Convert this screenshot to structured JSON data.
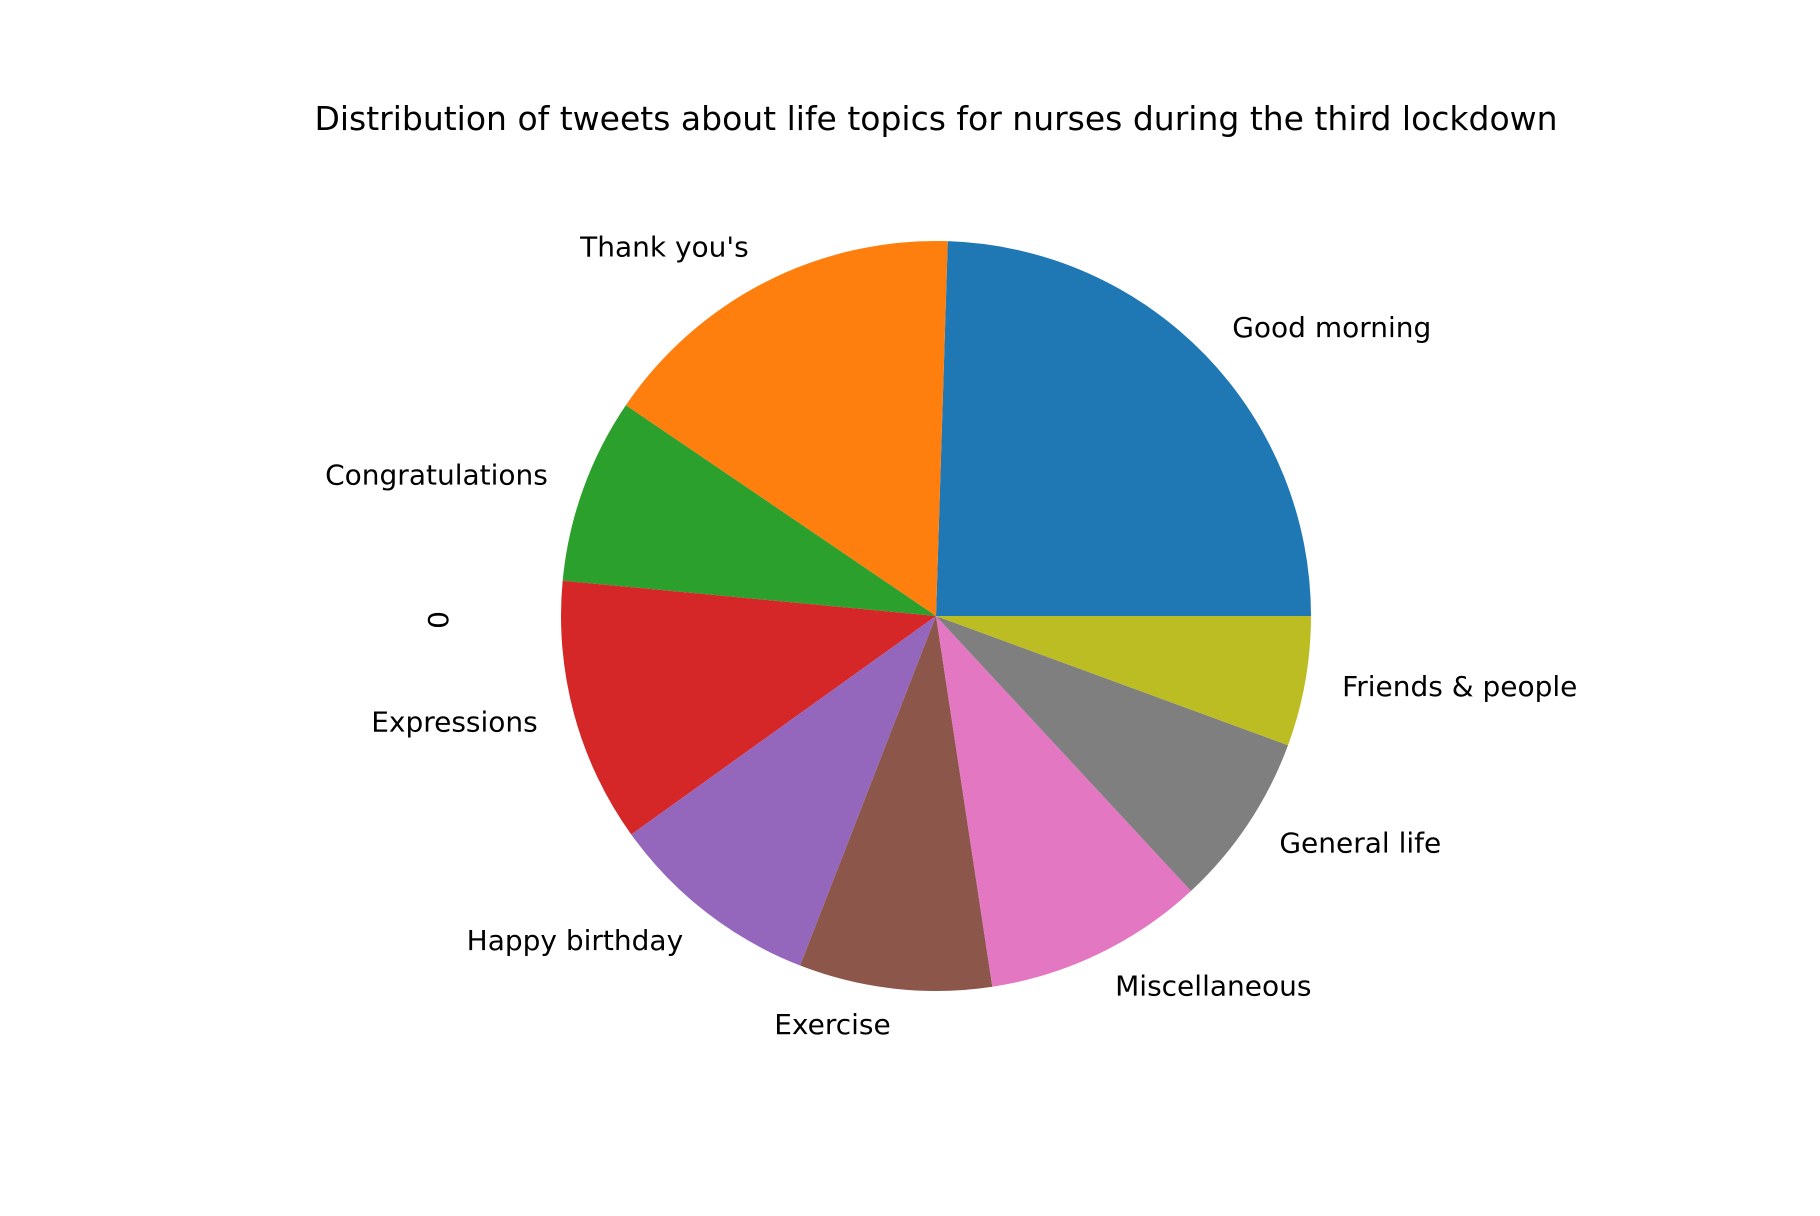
{
  "chart_data": {
    "type": "pie",
    "title": "Distribution of tweets about life topics for nurses during the third lockdown",
    "ylabel": "0",
    "categories": [
      "Good morning",
      "Thank you's",
      "Congratulations",
      "Expressions",
      "Happy birthday",
      "Exercise",
      "Miscellaneous",
      "General life",
      "Friends & people"
    ],
    "values": [
      24.5,
      16.0,
      8.0,
      11.4,
      9.2,
      8.3,
      9.5,
      7.5,
      5.6
    ],
    "colors": [
      "#1f77b4",
      "#ff7f0e",
      "#2ca02c",
      "#d62728",
      "#9467bd",
      "#8c564b",
      "#e377c2",
      "#7f7f7f",
      "#bcbd22"
    ],
    "start_angle_deg": 0,
    "direction": "counterclockwise",
    "legend": "none"
  }
}
